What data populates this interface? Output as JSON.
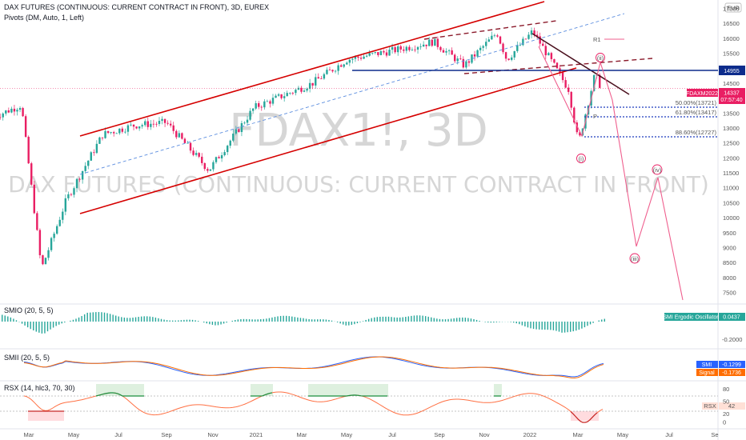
{
  "header": {
    "title": "DAX FUTURES (CONTINUOUS: CURRENT CONTRACT IN FRONT), 3D, EUREX",
    "pivots": "Pivots (DM, Auto, 1, Left)",
    "currency": "EUR"
  },
  "watermark": {
    "symbol": "FDAX1!, 3D",
    "name": "DAX FUTURES (CONTINUOUS: CURRENT CONTRACT IN FRONT)"
  },
  "price_labels": {
    "level": "14955",
    "symbol_tag": "FDAXM2022",
    "last_price": "14337",
    "countdown": "07:57:40"
  },
  "fib_labels": [
    "50.00%(13721)",
    "61.80%(13417)",
    "88.60%(12727)"
  ],
  "wave_labels": [
    "(i)",
    "(ii)",
    "(iii)",
    "(iv)"
  ],
  "pivot_labels": [
    "R1",
    "P"
  ],
  "colors": {
    "up": "#26a69a",
    "down": "#c2185b",
    "candle_up": "#26a69a",
    "candle_down": "#e91e63",
    "channel": "#d50000",
    "level_line": "#0d2c8c",
    "fib": "#1e3cbe",
    "projection": "#ef5f8e",
    "smio": "#26a69a",
    "smii_blue": "#2962ff",
    "smii_orange": "#ff6d00",
    "rsx": "#ff7043"
  },
  "chart_data": [
    {
      "type": "candlestick",
      "title": "DAX FUTURES (CONTINUOUS: CURRENT CONTRACT IN FRONT), 3D, EUREX",
      "x_ticks": [
        "Mar",
        "May",
        "Jul",
        "Sep",
        "Nov",
        "2021",
        "Mar",
        "May",
        "Jul",
        "Sep",
        "Nov",
        "2022",
        "Mar",
        "May",
        "Jul",
        "Se"
      ],
      "y_ticks": [
        7500,
        8000,
        8500,
        9000,
        9500,
        10000,
        10500,
        11000,
        11500,
        12000,
        12500,
        13000,
        13500,
        14000,
        14500,
        15000,
        15500,
        16000,
        16500,
        17000
      ],
      "ylim": [
        7200,
        17100
      ],
      "close_path_approx": [
        {
          "x": "2020-01-15",
          "y": 13400
        },
        {
          "x": "2020-02-20",
          "y": 13780
        },
        {
          "x": "2020-03-18",
          "y": 8300
        },
        {
          "x": "2020-04-20",
          "y": 10600
        },
        {
          "x": "2020-06-08",
          "y": 12800
        },
        {
          "x": "2020-07-20",
          "y": 13100
        },
        {
          "x": "2020-09-01",
          "y": 13200
        },
        {
          "x": "2020-10-28",
          "y": 11600
        },
        {
          "x": "2020-12-28",
          "y": 13700
        },
        {
          "x": "2021-03-15",
          "y": 14500
        },
        {
          "x": "2021-05-01",
          "y": 15300
        },
        {
          "x": "2021-07-01",
          "y": 15600
        },
        {
          "x": "2021-08-25",
          "y": 15900
        },
        {
          "x": "2021-10-05",
          "y": 15100
        },
        {
          "x": "2021-11-18",
          "y": 16200
        },
        {
          "x": "2021-12-01",
          "y": 15300
        },
        {
          "x": "2022-01-05",
          "y": 16250
        },
        {
          "x": "2022-02-22",
          "y": 14300
        },
        {
          "x": "2022-03-07",
          "y": 12500
        },
        {
          "x": "2022-03-29",
          "y": 14800
        },
        {
          "x": "2022-04-07",
          "y": 14337
        }
      ],
      "last_price": 14337,
      "horizontal_level": 14955,
      "fib_levels": [
        {
          "label": "50.00%(13721)",
          "value": 13721
        },
        {
          "label": "61.80%(13417)",
          "value": 13417
        },
        {
          "label": "88.60%(12727)",
          "value": 12727
        }
      ],
      "pivots": {
        "R1": 15960,
        "P": 13400
      }
    },
    {
      "type": "bar",
      "title": "SMIO (20, 5, 5)",
      "legend": "SMI Ergodic Oscillator",
      "last_value": "0.0437",
      "y_ticks": [
        "-0.2000"
      ],
      "values_approx": [
        0.15,
        -0.25,
        0.2,
        0.1,
        0.05,
        -0.05,
        0.08,
        0.1,
        -0.06,
        0.12,
        0.09,
        0.04,
        -0.06,
        -0.25,
        0.04
      ]
    },
    {
      "type": "line",
      "title": "SMII (20, 5, 5)",
      "series": [
        {
          "name": "SMI",
          "last_value": "-0.1299"
        },
        {
          "name": "Signal",
          "last_value": "-0.1736"
        }
      ]
    },
    {
      "type": "line",
      "title": "RSX (14, hlc3, 70, 30)",
      "series": [
        {
          "name": "RSX",
          "last_value": "42"
        }
      ],
      "y_ticks": [
        80,
        50,
        20,
        0
      ],
      "bands": [
        70,
        30
      ]
    }
  ]
}
